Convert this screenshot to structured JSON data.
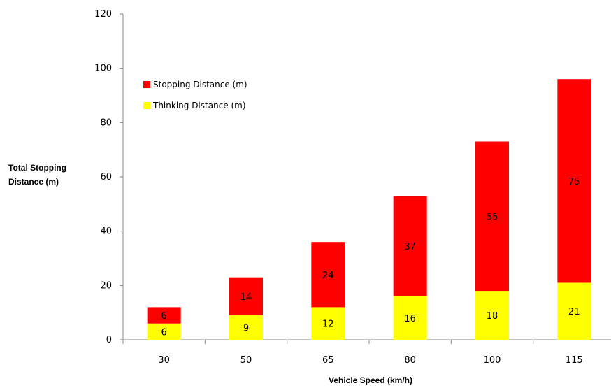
{
  "chart_data": {
    "type": "bar",
    "stacked": true,
    "categories": [
      "30",
      "50",
      "65",
      "80",
      "100",
      "115"
    ],
    "series": [
      {
        "name": "Thinking Distance (m)",
        "values": [
          6,
          9,
          12,
          16,
          18,
          21
        ],
        "color": "#ffff00"
      },
      {
        "name": "Stopping Distance (m)",
        "values": [
          6,
          14,
          24,
          37,
          55,
          75
        ],
        "color": "#ff0000"
      }
    ],
    "xlabel": "Vehicle Speed (km/h)",
    "ylabel_lines": [
      "Total Stopping",
      "Distance (m)"
    ],
    "ylim": [
      0,
      120
    ],
    "yticks": [
      0,
      20,
      40,
      60,
      80,
      100,
      120
    ],
    "grid": false,
    "legend_position": "top-left",
    "legend_order": [
      "Stopping Distance (m)",
      "Thinking Distance (m)"
    ]
  }
}
